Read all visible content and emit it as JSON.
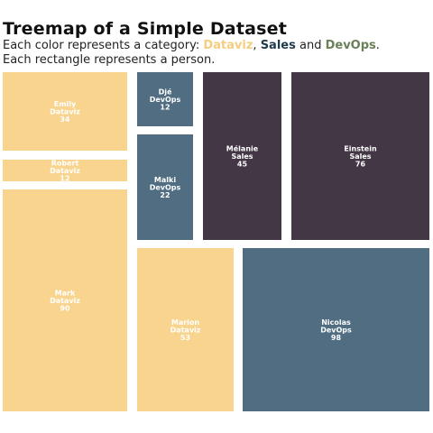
{
  "chart_data": {
    "type": "treemap",
    "title": "Treemap of a Simple Dataset",
    "subtitle": {
      "prefix": "Each color represents a category:",
      "sep1": ",",
      "sep2": "and",
      "suffix": ".",
      "line2": "Each rectangle represents a person."
    },
    "categories": [
      {
        "name": "Dataviz",
        "color": "#f8d48f"
      },
      {
        "name": "Sales",
        "color": "#433745"
      },
      {
        "name": "DevOps",
        "color": "#506d82"
      }
    ],
    "legend_text_colors": {
      "Dataviz": "#f5cd7f",
      "Sales": "#1f3a4d",
      "DevOps": "#6b7f58"
    },
    "items": [
      {
        "name": "Emily",
        "category": "Dataviz",
        "value": 34
      },
      {
        "name": "Robert",
        "category": "Dataviz",
        "value": 12
      },
      {
        "name": "Mark",
        "category": "Dataviz",
        "value": 90
      },
      {
        "name": "Djé",
        "category": "DevOps",
        "value": 12
      },
      {
        "name": "Malki",
        "category": "DevOps",
        "value": 22
      },
      {
        "name": "Mélanie",
        "category": "Sales",
        "value": 45
      },
      {
        "name": "Einstein",
        "category": "Sales",
        "value": 76
      },
      {
        "name": "Marion",
        "category": "Dataviz",
        "value": 53
      },
      {
        "name": "Nicolas",
        "category": "DevOps",
        "value": 98
      }
    ]
  }
}
